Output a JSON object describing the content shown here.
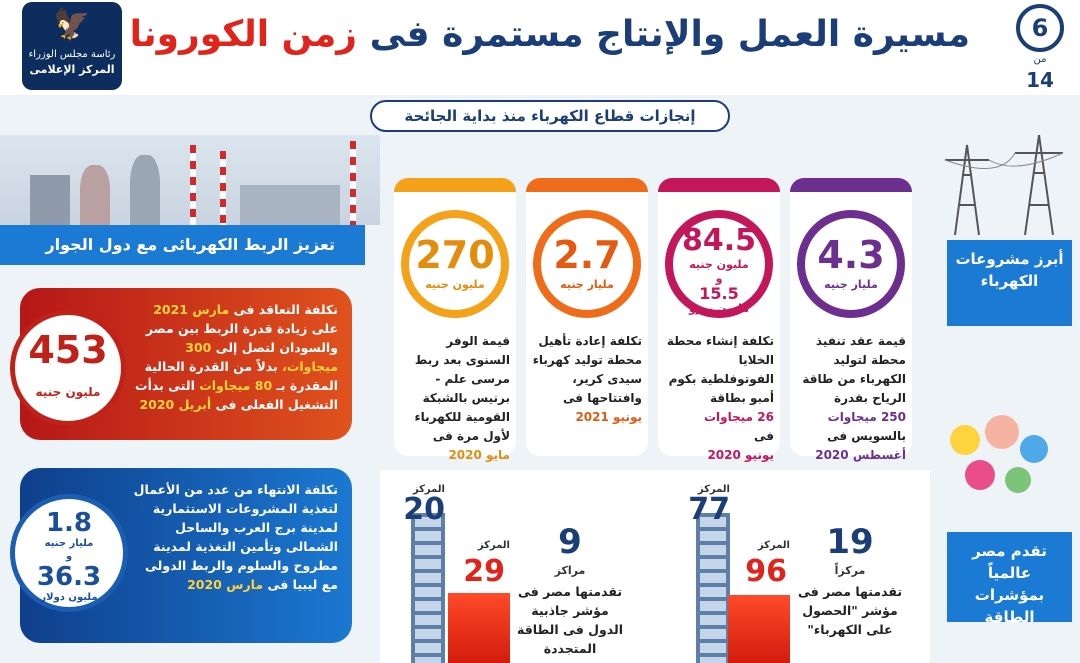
{
  "header": {
    "title_main": "مسيرة العمل والإنتاج مستمرة فى",
    "title_accent": "زمن الكورونا",
    "logo_line1": "رئاسة مجلس الوزراء",
    "logo_line2": "المركز الإعلامى",
    "page_number": "6",
    "page_of": "من",
    "page_total": "14",
    "subtitle": "إنجازات قطاع الكهرباء منذ بداية الجائحة"
  },
  "interconnection": {
    "heading": "تعزيز الربط الكهربائى مع دول الجوار",
    "sudan": {
      "value": "453",
      "unit": "مليون جنيه",
      "text_1": "تكلفة التعاقد فى",
      "text_month": "مارس 2021",
      "text_2": "على زيادة قدرة الربط بين مصر والسودان لتصل إلى",
      "text_mw1": "300 ميجاوات،",
      "text_3": "بدلاً من القدرة الحالية المقدرة بـ",
      "text_mw2": "80 ميجاوات",
      "text_4": "التى بدأت التشغيل الفعلى فى",
      "text_month2": "أبريل 2020"
    },
    "libya": {
      "value1": "1.8",
      "unit1": "مليار جنيه",
      "and": "و",
      "value2": "36.3",
      "unit2": "مليون دولار",
      "text_1": "تكلفة الانتهاء من عدد من الأعمال لتغذية المشروعات الاستثمارية لمدينة برج العرب والساحل الشمالى وتأمين التغذية لمدينة مطروح والسلوم والربط الدولى مع ليبيا فى",
      "text_month": "مارس 2020"
    }
  },
  "projects": {
    "side_label": "أبرز مشروعات الكهرباء",
    "cards": [
      {
        "value": "4.3",
        "unit": "مليار جنيه",
        "desc": "قيمة عقد تنفيذ محطة لتوليد الكهرباء من طاقة الرياح بقدرة",
        "highlight": "250 ميجاوات",
        "desc2": "بالسويس فى",
        "date": "أغسطس 2020"
      },
      {
        "value": "84.5",
        "unit": "مليون جنيه",
        "and": "و",
        "value2": "15.5",
        "unit2": "مليون يورو",
        "desc": "تكلفة إنشاء محطة الخلايا الفوتوفلطية بكوم أمبو بطاقة",
        "highlight": "26 ميجاوات",
        "desc2": "فى",
        "date": "يونيو 2020"
      },
      {
        "value": "2.7",
        "unit": "مليار جنيه",
        "desc": "تكلفة إعادة تأهيل محطة توليد كهرباء سيدى كرير، وافتتاحها فى",
        "date": "يونيو 2021"
      },
      {
        "value": "270",
        "unit": "مليون جنيه",
        "desc": "قيمة الوفر السنوى بعد ربط مرسى علم - برنيس بالشبكة القومية للكهرباء لأول مرة فى",
        "date": "مايو 2020"
      }
    ]
  },
  "rankings": {
    "side_label": "تقدم مصر عالمياً بمؤشرات الطاقة",
    "access": {
      "count": "19",
      "count_unit": "مركزاً",
      "desc": "تقدمتها مصر فى مؤشر \"الحصول على الكهرباء\"",
      "top_label": "المركز",
      "top_value": "77",
      "bottom_label": "المركز",
      "bottom_value": "96"
    },
    "renewable": {
      "count": "9",
      "count_unit": "مراكز",
      "desc": "تقدمتها مصر فى مؤشر جاذبية الدول فى الطاقة المتجددة",
      "top_label": "المركز",
      "top_value": "20",
      "bottom_label": "المركز",
      "bottom_value": "29"
    }
  }
}
